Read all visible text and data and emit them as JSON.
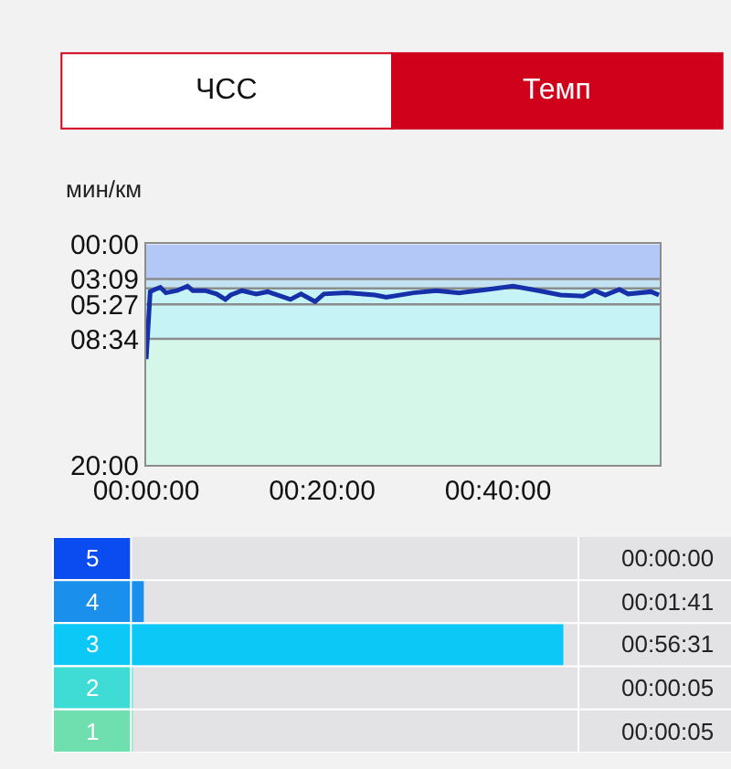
{
  "chart_data": [
    {
      "type": "line",
      "ylabel": "мин/км",
      "annotations": [
        "ЧСС",
        "Темп"
      ],
      "x": [
        0,
        0.45,
        0.96,
        1.6,
        2.24,
        3.5,
        4.7,
        5.3,
        6.7,
        8.0,
        9.0,
        9.6,
        10.9,
        12.5,
        13.8,
        16.4,
        17.6,
        19.2,
        20.2,
        22.8,
        26.0,
        27.3,
        30.4,
        33.0,
        35.6,
        38.8,
        41.7,
        44.6,
        47.1,
        49.7,
        51.0,
        52.2,
        53.8,
        54.8,
        57.4,
        58.3
      ],
      "series": [
        {
          "color": "#1530a8",
          "values": [
            10.4,
            4.3,
            4.1,
            3.9,
            4.4,
            4.2,
            3.8,
            4.2,
            4.2,
            4.5,
            5.0,
            4.6,
            4.2,
            4.5,
            4.3,
            5.0,
            4.5,
            5.2,
            4.5,
            4.4,
            4.6,
            4.8,
            4.4,
            4.2,
            4.4,
            4.1,
            3.8,
            4.2,
            4.6,
            4.7,
            4.2,
            4.6,
            4.1,
            4.5,
            4.3,
            4.6
          ]
        }
      ],
      "xlim": [
        0,
        58.4
      ],
      "xticks": [
        {
          "value": 0,
          "label": "00:00:00"
        },
        {
          "value": 20,
          "label": "00:20:00"
        },
        {
          "value": 40,
          "label": "00:40:00"
        }
      ],
      "ylim": [
        20,
        0
      ],
      "yticks": [
        {
          "value": 0,
          "label": "00:00"
        },
        {
          "value": 3.15,
          "label": "03:09"
        },
        {
          "value": 5.45,
          "label": "05:27"
        },
        {
          "value": 8.57,
          "label": "08:34"
        },
        {
          "value": 20,
          "label": "20:00"
        }
      ],
      "bands": [
        {
          "axis": "y",
          "from": 0,
          "to": 3.15,
          "color": "#b3c8f7"
        },
        {
          "axis": "y",
          "from": 3.15,
          "to": 4.0,
          "color": "#c3e3f3"
        },
        {
          "axis": "y",
          "from": 4.0,
          "to": 8.57,
          "color": "#c6f3f6"
        },
        {
          "axis": "y",
          "from": 8.57,
          "to": 20,
          "color": "#d4f7ea"
        }
      ],
      "ref_lines": [
        {
          "axis": "y",
          "value": 3.15,
          "color": "#8c8c8c"
        },
        {
          "axis": "y",
          "value": 4.0,
          "color": "#8c8c8c"
        },
        {
          "axis": "y",
          "value": 5.45,
          "color": "#8c8c8c"
        },
        {
          "axis": "y",
          "value": 8.57,
          "color": "#8c8c8c"
        }
      ],
      "grid": false,
      "marker": "none",
      "line_style": "solid"
    },
    {
      "type": "bar",
      "orientation": "horizontal",
      "categories": [
        "5",
        "4",
        "3",
        "2",
        "1"
      ],
      "values": [
        0,
        1.68,
        56.52,
        0.08,
        0.08
      ],
      "colors": [
        "#0a4cf0",
        "#1a90ec",
        "#0bc8f6",
        "#3fdcd6",
        "#6fdfb0"
      ],
      "value_labels": [
        "00:00:00",
        "00:01:41",
        "00:56:31",
        "00:00:05",
        "00:00:05"
      ],
      "tick_labels": "y"
    }
  ]
}
